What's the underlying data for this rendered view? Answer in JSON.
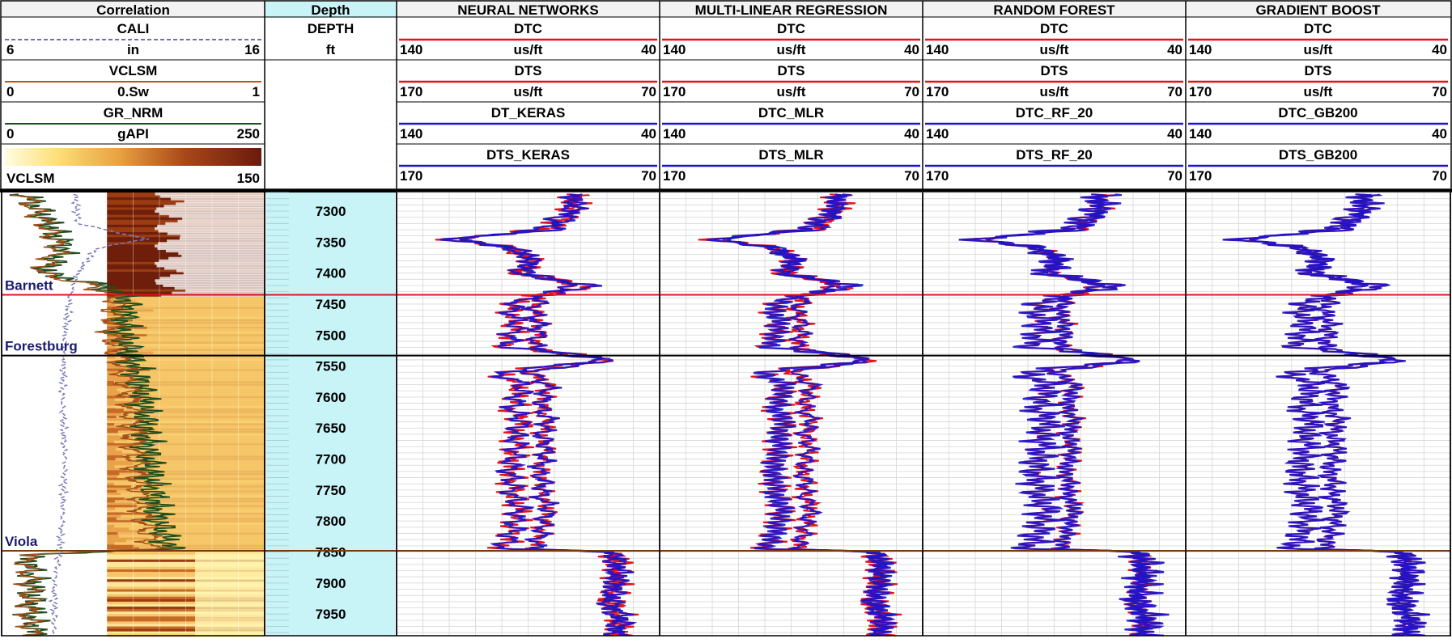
{
  "tracks": {
    "correlation": {
      "title": "Correlation",
      "curves": [
        {
          "name": "CALI",
          "left": "6",
          "unit": "in",
          "right": "16",
          "color": "#6f6fb0"
        },
        {
          "name": "VCLSM",
          "left": "0",
          "unit": "0.Sw",
          "right": "1",
          "color": "#b05a1a"
        },
        {
          "name": "GR_NRM",
          "left": "0",
          "unit": "gAPI",
          "right": "250",
          "color": "#1f4d1f"
        }
      ],
      "fill": {
        "name": "VCLSM",
        "right": "150"
      }
    },
    "depth": {
      "title": "Depth",
      "curve": "DEPTH",
      "unit": "ft"
    },
    "models": [
      {
        "title": "NEURAL NETWORKS",
        "pred_dtc": "DT_KERAS",
        "pred_dts": "DTS_KERAS"
      },
      {
        "title": "MULTI-LINEAR REGRESSION",
        "pred_dtc": "DTC_MLR",
        "pred_dts": "DTS_MLR"
      },
      {
        "title": "RANDOM FOREST",
        "pred_dtc": "DTC_RF_20",
        "pred_dts": "DTS_RF_20"
      },
      {
        "title": "GRADIENT BOOST",
        "pred_dtc": "DTC_GB200",
        "pred_dts": "DTS_GB200"
      }
    ],
    "model_curves": {
      "dtc": {
        "name": "DTC",
        "left": "140",
        "unit": "us/ft",
        "right": "40",
        "color": "#e0141e"
      },
      "dts": {
        "name": "DTS",
        "left": "170",
        "unit": "us/ft",
        "right": "70",
        "color": "#e0141e"
      },
      "pred_dtc_scale": {
        "left": "140",
        "right": "40",
        "color": "#1e14c8"
      },
      "pred_dts_scale": {
        "left": "170",
        "right": "70",
        "color": "#1e14c8"
      }
    }
  },
  "chart_data": {
    "type": "line",
    "depth_range": [
      7270,
      7985
    ],
    "depth_ticks": [
      7300,
      7350,
      7400,
      7450,
      7500,
      7550,
      7600,
      7650,
      7700,
      7750,
      7800,
      7850,
      7900,
      7950
    ],
    "formation_tops": [
      {
        "name": "Barnett",
        "depth": 7435,
        "line_color": "#e0141e"
      },
      {
        "name": "Forestburg",
        "depth": 7533,
        "line_color": "#000000"
      },
      {
        "name": "Viola",
        "depth": 7848,
        "line_color": "#7a3a10"
      }
    ],
    "dtc_profile": {
      "depth": [
        7275,
        7300,
        7330,
        7345,
        7360,
        7380,
        7400,
        7420,
        7440,
        7460,
        7480,
        7500,
        7520,
        7540,
        7560,
        7580,
        7600,
        7620,
        7640,
        7660,
        7680,
        7700,
        7720,
        7740,
        7760,
        7780,
        7800,
        7820,
        7845,
        7850,
        7870,
        7900,
        7930,
        7960,
        7985
      ],
      "values": [
        73,
        72,
        80,
        118,
        95,
        88,
        92,
        72,
        85,
        88,
        86,
        86,
        88,
        60,
        90,
        82,
        84,
        85,
        82,
        85,
        83,
        84,
        86,
        84,
        85,
        82,
        84,
        85,
        88,
        58,
        57,
        57,
        60,
        56,
        57
      ]
    },
    "dts_profile": {
      "depth": [
        7275,
        7300,
        7330,
        7345,
        7360,
        7380,
        7400,
        7420,
        7440,
        7460,
        7480,
        7500,
        7520,
        7540,
        7560,
        7580,
        7600,
        7620,
        7640,
        7660,
        7680,
        7700,
        7720,
        7740,
        7760,
        7780,
        7800,
        7820,
        7845,
        7850,
        7870,
        7900,
        7930,
        7960,
        7985
      ],
      "values": [
        102,
        104,
        115,
        150,
        126,
        118,
        124,
        95,
        122,
        127,
        124,
        126,
        128,
        88,
        132,
        122,
        124,
        126,
        122,
        125,
        124,
        126,
        127,
        126,
        126,
        123,
        125,
        126,
        130,
        88,
        85,
        86,
        88,
        84,
        86
      ]
    },
    "gr_profile": {
      "depth": [
        7275,
        7320,
        7360,
        7400,
        7420,
        7440,
        7500,
        7540,
        7600,
        7700,
        7800,
        7845,
        7855,
        7900,
        7950,
        7985
      ],
      "values": [
        25,
        45,
        60,
        40,
        95,
        120,
        115,
        125,
        135,
        140,
        150,
        160,
        25,
        30,
        28,
        32
      ]
    },
    "cali_profile": {
      "depth": [
        7275,
        7320,
        7345,
        7360,
        7400,
        7440,
        7500,
        7600,
        7700,
        7800,
        7850,
        7900,
        7985
      ],
      "values": [
        8.8,
        8.9,
        11.5,
        9.6,
        8.9,
        8.6,
        8.4,
        8.3,
        8.4,
        8.3,
        8.2,
        8.0,
        8.0
      ]
    }
  }
}
